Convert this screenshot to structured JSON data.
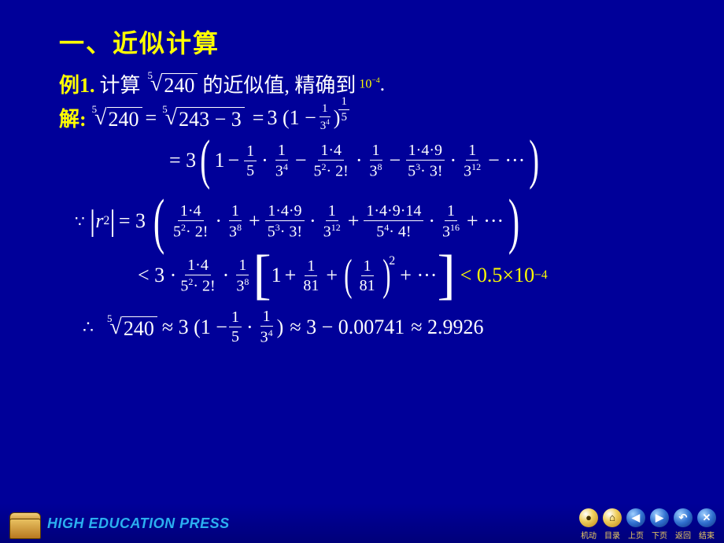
{
  "title_color": "#ffff00",
  "body_color": "#ffffff",
  "highlight_color": "#ffff00",
  "background": "#000099",
  "title": "一、近似计算",
  "example": {
    "label": "例1.",
    "pre": "计算",
    "root_idx": "5",
    "root_body": "240",
    "mid": "的近似值, 精确到",
    "precision_base": "10",
    "precision_exp": "−4",
    "period": "."
  },
  "solution_label": "解:",
  "step1": {
    "lhs_root_idx": "5",
    "lhs_root_body": "240",
    "eq1": "=",
    "mid_root_idx": "5",
    "mid_root_body": "243 − 3",
    "eq2": "=",
    "rhs_coeff": "3 (1 −",
    "rhs_frac_num": "1",
    "rhs_frac_den_base": "3",
    "rhs_frac_den_exp": "4",
    "rhs_close": ")",
    "rhs_exp_num": "1",
    "rhs_exp_den": "5"
  },
  "step2": {
    "eq": "= 3",
    "t0": "1",
    "t1": {
      "a": "1",
      "b": "5",
      "c": "1",
      "d_base": "3",
      "d_exp": "4"
    },
    "t2": {
      "a": "1·4",
      "b1": "5",
      "b1e": "2",
      "b2": "· 2!",
      "c": "1",
      "d_base": "3",
      "d_exp": "8"
    },
    "t3": {
      "a": "1·4·9",
      "b1": "5",
      "b1e": "3",
      "b2": "· 3!",
      "c": "1",
      "d_base": "3",
      "d_exp": "12"
    },
    "dots": "− ···"
  },
  "r_line": {
    "because": "∵",
    "r": "r",
    "r_sub": "2",
    "eq": "= 3",
    "t1": {
      "a": "1·4",
      "b1": "5",
      "b1e": "2",
      "b2": "· 2!",
      "c": "1",
      "d_base": "3",
      "d_exp": "8"
    },
    "t2": {
      "a": "1·4·9",
      "b1": "5",
      "b1e": "3",
      "b2": "· 3!",
      "c": "1",
      "d_base": "3",
      "d_exp": "12"
    },
    "t3": {
      "a": "1·4·9·14",
      "b1": "5",
      "b1e": "4",
      "b2": "· 4!",
      "c": "1",
      "d_base": "3",
      "d_exp": "16"
    },
    "dots": "+ ···"
  },
  "bound": {
    "lt1": "< 3 ·",
    "f1": {
      "a": "1·4",
      "b1": "5",
      "b1e": "2",
      "b2": "· 2!"
    },
    "dot": "·",
    "f2": {
      "c": "1",
      "d_base": "3",
      "d_exp": "8"
    },
    "br_open": "[",
    "one": "1",
    "plus1": "+",
    "g1_num": "1",
    "g1_den": "81",
    "plus2": "+",
    "g2_num": "1",
    "g2_den": "81",
    "g2_exp": "2",
    "dots": "+ ···",
    "br_close": "]",
    "lt2": "< 0.5×10",
    "lt2_exp": "−4"
  },
  "final": {
    "therefore": "∴",
    "root_idx": "5",
    "root_body": "240",
    "approx1": "≈ 3 (1 −",
    "f_num": "1",
    "f_den": "5",
    "dot": "·",
    "g_num": "1",
    "g_den_base": "3",
    "g_den_exp": "4",
    "close": ")",
    "approx2": "≈ 3 − 0.00741",
    "approx3": "≈ 2.9926"
  },
  "footer": {
    "brand": "HIGH EDUCATION PRESS",
    "buttons": [
      {
        "glyph": "●",
        "label": "机动",
        "blue": false
      },
      {
        "glyph": "⌂",
        "label": "目录",
        "blue": false
      },
      {
        "glyph": "◀",
        "label": "上页",
        "blue": true
      },
      {
        "glyph": "▶",
        "label": "下页",
        "blue": true
      },
      {
        "glyph": "↶",
        "label": "返回",
        "blue": true
      },
      {
        "glyph": "✕",
        "label": "结束",
        "blue": true
      }
    ]
  }
}
